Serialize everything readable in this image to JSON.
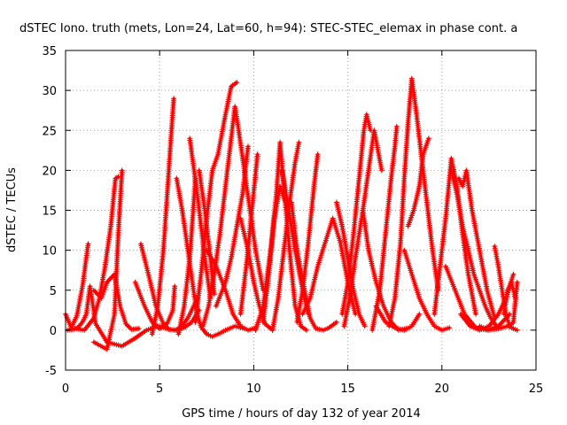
{
  "chart_data": {
    "type": "scatter",
    "title": "dSTEC Iono. truth (mets, Lon=24, Lat=60, h=94): STEC-STEC_elemax in phase cont. a",
    "xlabel": "GPS time / hours of day 132 of year 2014",
    "ylabel": "dSTEC  / TECUs",
    "xlim": [
      0,
      25
    ],
    "ylim": [
      -5,
      35
    ],
    "x_ticks": [
      0,
      5,
      10,
      15,
      20,
      25
    ],
    "y_ticks": [
      -5,
      0,
      5,
      10,
      15,
      20,
      25,
      30,
      35
    ],
    "x_tick_labels": [
      "0",
      "5",
      "10",
      "15",
      "20",
      "25"
    ],
    "y_tick_labels": [
      "-5",
      "0",
      "5",
      "10",
      "15",
      "20",
      "25",
      "30",
      "35"
    ],
    "grid": true,
    "marker": "+",
    "color": "#ff0000",
    "series": [
      {
        "x": [
          0.0,
          0.3,
          0.6,
          0.9,
          1.2
        ],
        "y": [
          2.0,
          0.3,
          1.8,
          5.5,
          10.8
        ]
      },
      {
        "x": [
          0.5,
          1.0,
          1.5,
          1.8,
          2.1,
          2.4,
          2.65,
          2.8
        ],
        "y": [
          0.2,
          0.0,
          1.5,
          4.0,
          8.0,
          13.0,
          19.0,
          19.2
        ]
      },
      {
        "x": [
          1.5,
          2.2,
          2.6,
          2.8,
          3.0
        ],
        "y": [
          -1.5,
          -2.4,
          2.0,
          12.0,
          20.0
        ]
      },
      {
        "x": [
          1.5,
          1.9,
          2.2,
          2.6,
          2.9,
          3.2,
          3.5,
          3.9
        ],
        "y": [
          5.0,
          4.0,
          6.0,
          7.0,
          3.0,
          0.8,
          0.1,
          0.2
        ]
      },
      {
        "x": [
          0.1,
          0.6,
          0.9,
          1.1,
          1.3,
          1.6,
          2.2,
          3.0,
          3.7,
          4.3,
          4.9
        ],
        "y": [
          0.0,
          0.2,
          1.0,
          2.0,
          5.5,
          0.8,
          -1.5,
          -2.0,
          -1.0,
          0.0,
          0.5
        ]
      },
      {
        "x": [
          3.7,
          4.2,
          4.6,
          5.0,
          5.4,
          5.7,
          5.8
        ],
        "y": [
          6.0,
          3.0,
          1.0,
          0.2,
          0.8,
          2.5,
          5.5
        ]
      },
      {
        "x": [
          4.0,
          4.4,
          4.8,
          5.2,
          5.5,
          5.8,
          6.1,
          6.5,
          7.0
        ],
        "y": [
          10.8,
          7.0,
          3.0,
          0.8,
          0.1,
          0.0,
          0.3,
          1.5,
          4.0
        ]
      },
      {
        "x": [
          4.6,
          4.9,
          5.2,
          5.4,
          5.6,
          5.75
        ],
        "y": [
          -0.5,
          3.0,
          10.0,
          17.0,
          24.0,
          29.0
        ]
      },
      {
        "x": [
          5.0,
          5.5,
          5.9,
          6.3,
          6.7,
          7.1
        ],
        "y": [
          0.5,
          0.1,
          0.0,
          0.3,
          1.0,
          2.5
        ]
      },
      {
        "x": [
          5.9,
          6.2,
          6.5,
          6.8,
          7.0,
          7.2,
          7.5,
          7.8,
          8.1,
          8.5,
          9.0,
          9.5
        ],
        "y": [
          19.0,
          15.0,
          10.0,
          5.0,
          2.0,
          0.4,
          -0.5,
          -0.8,
          -0.5,
          0.0,
          0.5,
          0.2
        ]
      },
      {
        "x": [
          6.0,
          6.3,
          6.6,
          6.9
        ],
        "y": [
          -0.5,
          3.0,
          9.0,
          19.0
        ]
      },
      {
        "x": [
          6.6,
          7.0,
          7.4,
          7.7
        ],
        "y": [
          24.0,
          17.0,
          9.0,
          4.0
        ]
      },
      {
        "x": [
          6.9,
          7.2,
          7.5,
          7.8,
          8.1,
          8.5,
          8.8,
          9.1
        ],
        "y": [
          1.0,
          7.0,
          14.0,
          20.0,
          22.0,
          27.0,
          30.5,
          31.0
        ]
      },
      {
        "x": [
          7.1,
          7.4,
          7.7,
          7.9
        ],
        "y": [
          20.0,
          15.0,
          9.0,
          4.5
        ]
      },
      {
        "x": [
          7.3,
          7.6,
          7.9,
          8.2,
          8.5,
          8.8,
          9.0,
          9.2,
          9.5,
          9.8,
          10.1,
          10.5
        ],
        "y": [
          0.5,
          3.0,
          7.0,
          12.0,
          18.0,
          24.0,
          28.0,
          25.0,
          20.0,
          15.0,
          10.0,
          5.0
        ]
      },
      {
        "x": [
          7.5,
          8.0,
          8.5,
          8.9,
          9.3,
          9.7,
          10.1
        ],
        "y": [
          10.0,
          8.0,
          5.0,
          2.0,
          0.5,
          0.0,
          0.3
        ]
      },
      {
        "x": [
          8.0,
          8.5,
          8.8,
          9.1,
          9.4,
          9.7
        ],
        "y": [
          3.0,
          6.0,
          9.0,
          13.0,
          17.0,
          23.0
        ]
      },
      {
        "x": [
          9.3,
          9.7,
          10.0,
          10.3,
          10.6,
          11.0
        ],
        "y": [
          14.0,
          10.0,
          6.0,
          3.0,
          0.8,
          0.0
        ]
      },
      {
        "x": [
          9.3,
          9.6,
          9.9,
          10.2
        ],
        "y": [
          2.0,
          8.0,
          15.0,
          22.0
        ]
      },
      {
        "x": [
          10.1,
          10.5,
          10.9,
          11.2,
          11.4,
          11.6,
          11.9,
          12.2,
          12.5,
          12.8
        ],
        "y": [
          0.0,
          3.0,
          10.0,
          17.0,
          23.5,
          18.0,
          10.0,
          3.0,
          0.5,
          0.0
        ]
      },
      {
        "x": [
          10.5,
          10.8,
          11.1,
          11.4,
          11.7
        ],
        "y": [
          1.0,
          7.0,
          14.0,
          18.0,
          16.0
        ]
      },
      {
        "x": [
          11.0,
          11.3,
          11.6,
          11.9,
          12.2,
          12.4
        ],
        "y": [
          0.0,
          4.0,
          10.0,
          16.0,
          21.0,
          23.5
        ]
      },
      {
        "x": [
          11.5,
          11.8,
          12.2,
          12.6,
          12.9
        ],
        "y": [
          20.0,
          16.0,
          10.0,
          5.0,
          2.0
        ]
      },
      {
        "x": [
          12.0,
          12.3,
          12.7,
          13.0,
          13.3,
          13.7,
          14.0,
          14.4
        ],
        "y": [
          16.0,
          10.0,
          5.0,
          1.5,
          0.2,
          0.0,
          0.3,
          1.0
        ]
      },
      {
        "x": [
          12.3,
          12.6,
          12.9,
          13.2,
          13.4
        ],
        "y": [
          1.0,
          5.0,
          11.0,
          18.0,
          22.0
        ]
      },
      {
        "x": [
          12.6,
          13.0,
          13.4,
          13.8,
          14.2,
          14.6,
          15.0,
          15.4
        ],
        "y": [
          2.0,
          4.0,
          8.0,
          11.0,
          14.0,
          11.0,
          6.0,
          2.0
        ]
      },
      {
        "x": [
          14.4,
          14.7,
          15.0,
          15.3,
          15.6,
          15.9
        ],
        "y": [
          16.0,
          13.0,
          9.0,
          5.0,
          2.0,
          0.5
        ]
      },
      {
        "x": [
          14.7,
          15.0,
          15.3,
          15.6,
          15.85,
          16.0,
          16.2
        ],
        "y": [
          2.0,
          6.0,
          12.0,
          19.0,
          25.0,
          27.0,
          25.0
        ]
      },
      {
        "x": [
          14.8,
          15.1,
          15.4,
          15.8,
          16.1,
          16.4,
          16.8
        ],
        "y": [
          0.5,
          4.0,
          9.0,
          15.0,
          20.0,
          25.0,
          20.0
        ]
      },
      {
        "x": [
          15.8,
          16.1,
          16.5,
          16.9,
          17.3,
          17.7,
          18.1
        ],
        "y": [
          15.0,
          10.0,
          6.0,
          3.0,
          1.0,
          0.0,
          0.2
        ]
      },
      {
        "x": [
          16.3,
          16.7,
          17.0,
          17.3,
          17.5,
          17.6
        ],
        "y": [
          0.0,
          5.0,
          12.0,
          19.0,
          23.0,
          25.5
        ]
      },
      {
        "x": [
          17.2,
          17.5,
          17.8,
          18.0,
          18.2,
          18.4,
          18.6,
          18.9,
          19.2,
          19.5,
          19.8
        ],
        "y": [
          0.5,
          4.0,
          11.0,
          19.0,
          26.0,
          31.5,
          28.0,
          22.0,
          16.0,
          10.0,
          5.0
        ]
      },
      {
        "x": [
          18.2,
          18.5,
          18.8,
          19.0,
          19.3
        ],
        "y": [
          13.0,
          15.0,
          18.0,
          22.0,
          24.0
        ]
      },
      {
        "x": [
          16.5,
          17.0,
          17.5,
          18.0,
          18.4,
          18.8
        ],
        "y": [
          3.0,
          1.0,
          0.3,
          0.0,
          0.5,
          2.0
        ]
      },
      {
        "x": [
          18.0,
          18.4,
          18.8,
          19.2,
          19.6,
          20.0,
          20.4
        ],
        "y": [
          10.0,
          7.0,
          4.0,
          2.0,
          0.5,
          0.0,
          0.3
        ]
      },
      {
        "x": [
          19.6,
          19.9,
          20.2,
          20.5,
          20.8,
          21.1,
          21.4,
          21.8
        ],
        "y": [
          2.0,
          8.0,
          14.0,
          21.5,
          18.0,
          12.0,
          7.0,
          2.0
        ]
      },
      {
        "x": [
          20.5,
          20.8,
          21.1,
          21.4,
          21.7,
          22.0,
          22.3,
          22.6,
          22.9
        ],
        "y": [
          20.0,
          17.0,
          13.0,
          10.0,
          7.0,
          5.0,
          3.0,
          1.5,
          0.5
        ]
      },
      {
        "x": [
          20.9,
          21.1,
          21.3,
          21.6,
          22.0,
          22.4,
          22.8
        ],
        "y": [
          19.0,
          18.0,
          20.0,
          15.0,
          10.0,
          5.0,
          1.5
        ]
      },
      {
        "x": [
          20.2,
          20.7,
          21.2,
          21.8,
          22.4,
          23.0,
          23.6
        ],
        "y": [
          8.0,
          5.0,
          2.0,
          0.3,
          0.0,
          0.5,
          2.0
        ]
      },
      {
        "x": [
          21.0,
          21.5,
          22.0,
          22.5,
          23.0,
          23.4,
          23.8
        ],
        "y": [
          2.0,
          0.5,
          0.0,
          0.5,
          2.0,
          4.0,
          7.0
        ]
      },
      {
        "x": [
          22.8,
          23.0,
          23.2,
          23.4,
          23.6,
          23.8,
          24.0
        ],
        "y": [
          10.5,
          8.0,
          5.0,
          2.0,
          0.5,
          1.0,
          6.0
        ]
      },
      {
        "x": [
          23.3,
          23.5,
          23.7,
          23.9
        ],
        "y": [
          2.0,
          5.0,
          6.0,
          4.0
        ]
      },
      {
        "x": [
          22.0,
          22.5,
          23.0,
          23.5,
          24.0
        ],
        "y": [
          0.5,
          0.0,
          0.2,
          0.5,
          0.0
        ]
      }
    ]
  }
}
